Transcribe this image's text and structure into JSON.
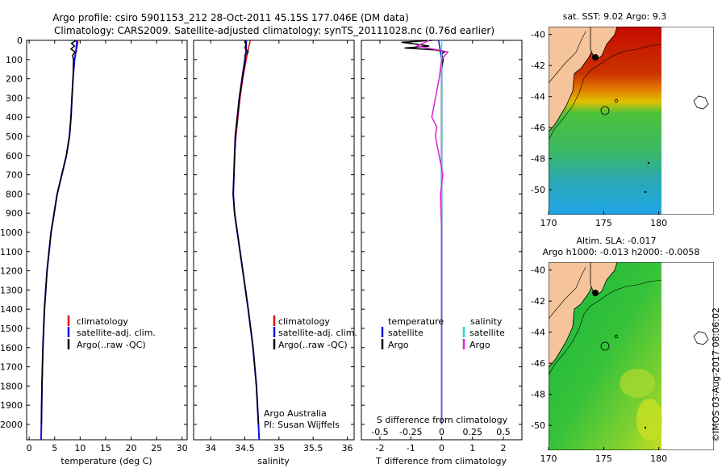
{
  "title": {
    "line1": "Argo profile: csiro 5901153_212 28-Oct-2011 45.15S 177.046E (DM data)",
    "line2": "Climatology: CARS2009. Satellite-adjusted climatology: synTS_20111028.nc (0.76d earlier)"
  },
  "colors": {
    "climatology": "#dd0000",
    "satellite": "#1111dd",
    "argo": "#000000",
    "sal_satellite": "#22dddd",
    "sal_argo": "#dd22dd",
    "land": "#f5c49a"
  },
  "chart_data": [
    {
      "type": "line",
      "id": "temperature",
      "xlabel": "temperature (deg C)",
      "ylabel": "depth",
      "xlim": [
        -0.5,
        31
      ],
      "ylim": [
        2080,
        0
      ],
      "xticks": [
        "0",
        "5",
        "10",
        "15",
        "20",
        "25",
        "30"
      ],
      "xtick_values": [
        0,
        5,
        10,
        15,
        20,
        25,
        30
      ],
      "yticks": [
        "0",
        "100",
        "200",
        "300",
        "400",
        "500",
        "600",
        "700",
        "800",
        "900",
        "1000",
        "1100",
        "1200",
        "1300",
        "1400",
        "1500",
        "1600",
        "1700",
        "1800",
        "1900",
        "2000"
      ],
      "ytick_values": [
        0,
        100,
        200,
        300,
        400,
        500,
        600,
        700,
        800,
        900,
        1000,
        1100,
        1200,
        1300,
        1400,
        1500,
        1600,
        1700,
        1800,
        1900,
        2000
      ],
      "legend": [
        "climatology",
        "satellite-adj. clim.",
        "Argo(..raw -QC)"
      ],
      "series": [
        {
          "name": "climatology",
          "depth": [
            0,
            50,
            100,
            200,
            300,
            400,
            500,
            600,
            700,
            800,
            900,
            1000,
            1200,
            1400,
            1600,
            1800,
            2000,
            2080
          ],
          "values": [
            9.6,
            9.3,
            8.9,
            8.6,
            8.4,
            8.2,
            7.9,
            7.3,
            6.4,
            5.5,
            4.9,
            4.3,
            3.5,
            3.0,
            2.7,
            2.5,
            2.4,
            2.35
          ]
        },
        {
          "name": "satellite-adj. clim.",
          "depth": [
            0,
            50,
            100,
            200,
            300,
            400,
            500,
            600,
            700,
            800,
            900,
            1000,
            1200,
            1400,
            1600,
            1800,
            2000,
            2080
          ],
          "values": [
            9.4,
            9.2,
            8.9,
            8.6,
            8.4,
            8.2,
            7.9,
            7.3,
            6.4,
            5.5,
            4.9,
            4.3,
            3.5,
            3.0,
            2.7,
            2.5,
            2.4,
            2.35
          ]
        },
        {
          "name": "Argo(..raw -QC)",
          "depth": [
            0,
            15,
            30,
            45,
            60,
            80,
            100,
            200,
            300,
            400,
            500,
            600,
            700,
            800,
            900,
            1000,
            1200,
            1400,
            1600,
            1800,
            2000
          ],
          "values": [
            9.2,
            8.3,
            8.9,
            8.2,
            9.0,
            8.5,
            8.7,
            8.6,
            8.4,
            8.2,
            7.9,
            7.3,
            6.4,
            5.5,
            4.9,
            4.3,
            3.5,
            3.0,
            2.7,
            2.5,
            2.4
          ]
        }
      ]
    },
    {
      "type": "line",
      "id": "salinity",
      "xlabel": "salinity",
      "xlim": [
        33.75,
        36.1
      ],
      "ylim": [
        2080,
        0
      ],
      "xticks": [
        "34",
        "34.5",
        "35",
        "35.5",
        "36"
      ],
      "xtick_values": [
        34,
        34.5,
        35,
        35.5,
        36
      ],
      "legend": [
        "climatology",
        "satellite-adj. clim.",
        "Argo(..raw -QC)"
      ],
      "credit": [
        "Argo Australia",
        "PI: Susan Wijffels"
      ],
      "series": [
        {
          "name": "climatology",
          "depth": [
            0,
            50,
            100,
            200,
            300,
            400,
            500,
            600,
            700,
            800,
            900,
            1000,
            1200,
            1400,
            1600,
            1800,
            2000,
            2080
          ],
          "values": [
            34.58,
            34.55,
            34.52,
            34.47,
            34.43,
            34.4,
            34.37,
            34.35,
            34.34,
            34.33,
            34.35,
            34.39,
            34.47,
            34.55,
            34.62,
            34.67,
            34.7,
            34.71
          ]
        },
        {
          "name": "satellite-adj. clim.",
          "depth": [
            0,
            50,
            100,
            200,
            300,
            400,
            500,
            600,
            700,
            800,
            900,
            1000,
            1200,
            1400,
            1600,
            1800,
            2000,
            2080
          ],
          "values": [
            34.52,
            34.52,
            34.5,
            34.46,
            34.42,
            34.39,
            34.36,
            34.35,
            34.34,
            34.33,
            34.35,
            34.39,
            34.47,
            34.55,
            34.62,
            34.67,
            34.7,
            34.71
          ]
        },
        {
          "name": "Argo(..raw -QC)",
          "depth": [
            0,
            20,
            40,
            60,
            80,
            100,
            200,
            300,
            400,
            500,
            600,
            700,
            800,
            900,
            1000,
            1200,
            1400,
            1600,
            1800,
            2000
          ],
          "values": [
            34.5,
            34.52,
            34.5,
            34.55,
            34.5,
            34.51,
            34.46,
            34.42,
            34.39,
            34.36,
            34.35,
            34.34,
            34.33,
            34.35,
            34.39,
            34.47,
            34.55,
            34.62,
            34.67,
            34.7
          ]
        }
      ]
    },
    {
      "type": "line",
      "id": "difference",
      "xlabel": "T difference from climatology",
      "xlabel2": "S difference from climatology",
      "xlim": [
        -2.6,
        2.6
      ],
      "ylim": [
        2080,
        0
      ],
      "xticks": [
        "-2",
        "-1",
        "0",
        "1",
        "2"
      ],
      "xtick_values": [
        -2,
        -1,
        0,
        1,
        2
      ],
      "sticks": [
        "-0.5",
        "-0.25",
        "0",
        "0.25",
        "0.5"
      ],
      "stick_values": [
        -0.5,
        -0.25,
        0,
        0.25,
        0.5
      ],
      "legend": {
        "temperature_head": "temperature",
        "salinity_head": "salinity",
        "temperature": [
          "satellite",
          "Argo"
        ],
        "salinity": [
          "satellite",
          "Argo"
        ]
      },
      "series": [
        {
          "name": "T satellite",
          "depth": [
            0,
            100,
            300,
            600,
            1000,
            1500,
            2000
          ],
          "values": [
            -0.1,
            0,
            0,
            0,
            0,
            0,
            0
          ]
        },
        {
          "name": "T Argo",
          "depth": [
            0,
            10,
            20,
            30,
            40,
            50,
            60,
            70,
            100,
            150,
            300,
            500,
            1000,
            2000
          ],
          "values": [
            -0.3,
            -1.3,
            -0.8,
            -0.4,
            -1.2,
            -0.2,
            0.1,
            0.0,
            0.05,
            0.0,
            0.0,
            0.0,
            0.0,
            0.0
          ]
        },
        {
          "name": "S satellite",
          "depth": [
            0,
            100,
            300,
            600,
            1000,
            1500,
            2000
          ],
          "values": [
            0,
            0,
            0,
            0,
            0,
            0,
            0
          ]
        },
        {
          "name": "S Argo",
          "depth": [
            0,
            30,
            60,
            100,
            200,
            300,
            400,
            450,
            500,
            600,
            700,
            800,
            1000,
            1500,
            2000
          ],
          "values": [
            -0.1,
            -0.2,
            0.05,
            0.0,
            -0.02,
            -0.05,
            -0.08,
            -0.04,
            -0.05,
            -0.02,
            0.01,
            -0.01,
            0,
            0,
            0
          ]
        }
      ]
    },
    {
      "type": "heatmap",
      "id": "sst-map",
      "title": "sat. SST: 9.02  Argo: 9.3",
      "xticks": [
        "170",
        "175",
        "180"
      ],
      "xtick_values": [
        170,
        175,
        180
      ],
      "yticks": [
        "-40",
        "-42",
        "-44",
        "-46",
        "-48",
        "-50"
      ],
      "ytick_values": [
        -40,
        -42,
        -44,
        -46,
        -48,
        -50
      ],
      "xlim": [
        170,
        185
      ],
      "ylim": [
        -51.6,
        -39.5
      ]
    },
    {
      "type": "heatmap",
      "id": "sla-map",
      "title": "Altim. SLA: -0.017",
      "subtitle": "Argo h1000: -0.013  h2000: -0.0058",
      "xticks": [
        "170",
        "175",
        "180"
      ],
      "xtick_values": [
        170,
        175,
        180
      ],
      "yticks": [
        "-40",
        "-42",
        "-44",
        "-46",
        "-48",
        "-50"
      ],
      "ytick_values": [
        -40,
        -42,
        -44,
        -46,
        -48,
        -50
      ],
      "xlim": [
        170,
        185
      ],
      "ylim": [
        -51.6,
        -39.5
      ]
    }
  ],
  "watermark": "©IMOS 03-Aug-2017 08:06:02"
}
